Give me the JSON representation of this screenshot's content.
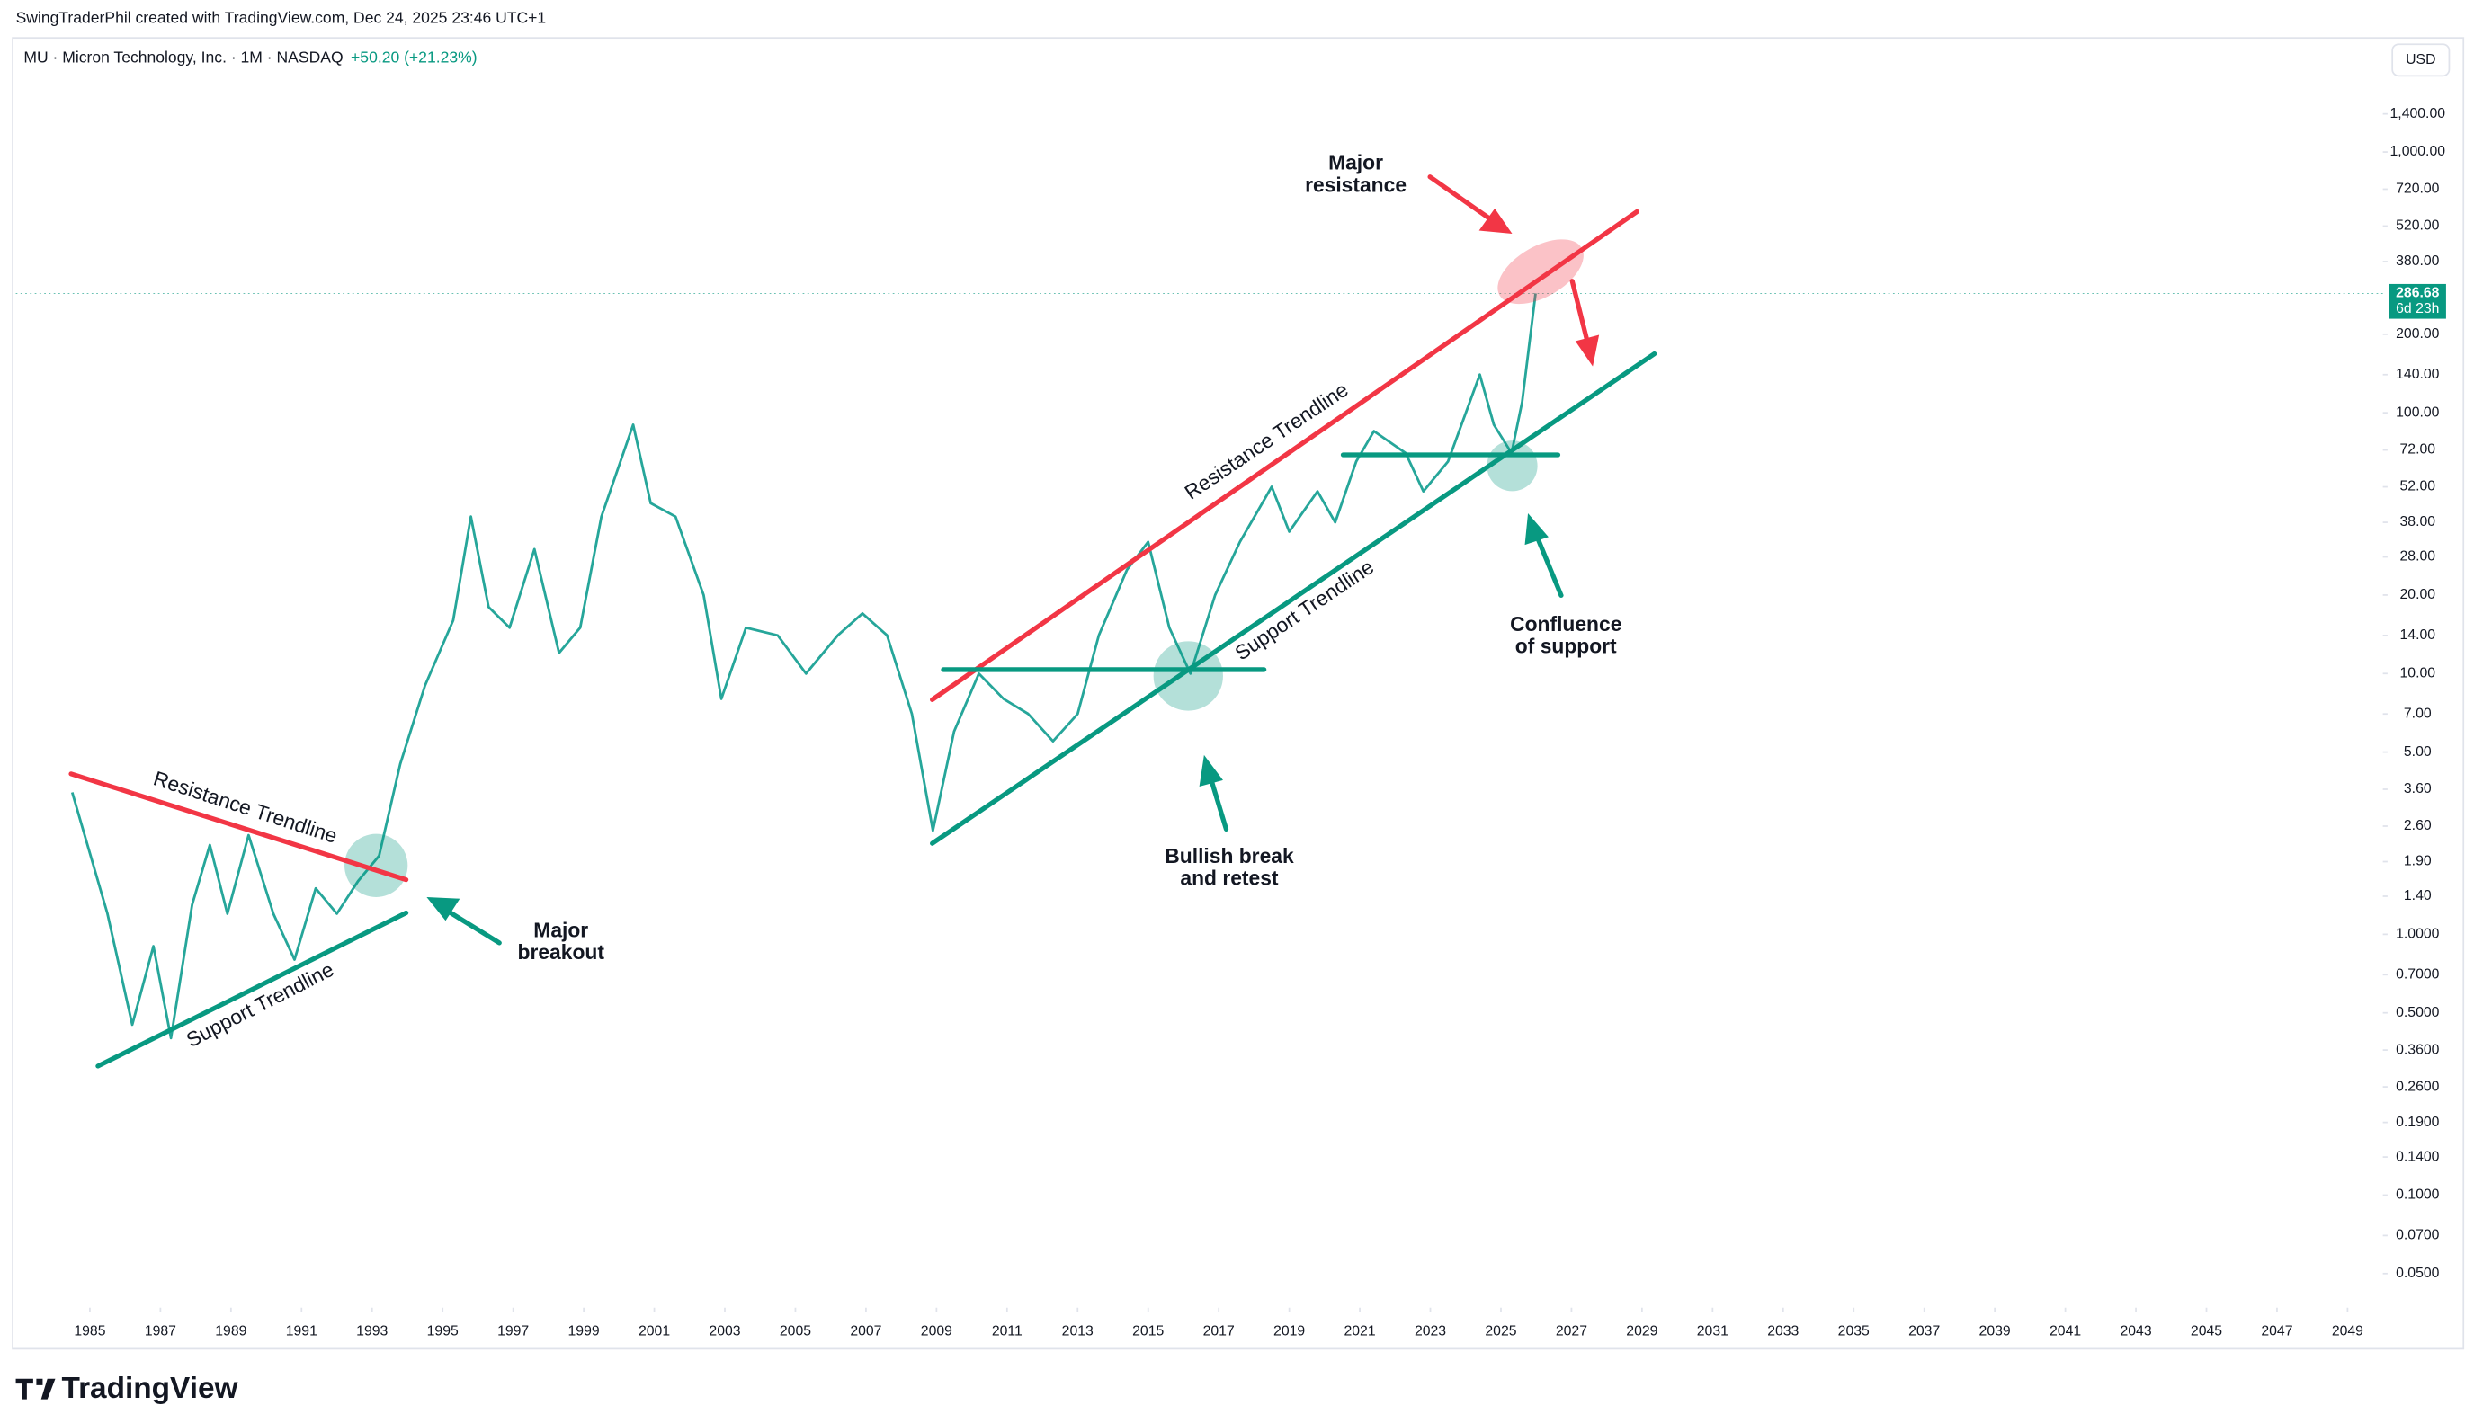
{
  "header": {
    "credit": "SwingTraderPhil created with TradingView.com, Dec 24, 2025 23:46 UTC+1",
    "symbol": "MU · Micron Technology, Inc. · 1M · NASDAQ",
    "change": "+50.20 (+21.23%)",
    "currency": "USD",
    "logo": "TradingView"
  },
  "chart_data": {
    "type": "line",
    "log_scale": true,
    "color": "#26a69a",
    "x": [
      1984.5,
      1985.5,
      1986.2,
      1986.8,
      1987.3,
      1987.9,
      1988.4,
      1988.9,
      1989.5,
      1990.2,
      1990.8,
      1991.4,
      1992.0,
      1992.6,
      1993.2,
      1993.8,
      1994.5,
      1995.3,
      1995.8,
      1996.3,
      1996.9,
      1997.6,
      1998.3,
      1998.9,
      1999.5,
      2000.4,
      2000.9,
      2001.6,
      2002.4,
      2002.9,
      2003.6,
      2004.5,
      2005.3,
      2006.2,
      2006.9,
      2007.6,
      2008.3,
      2008.9,
      2009.5,
      2010.2,
      2010.9,
      2011.6,
      2012.3,
      2013.0,
      2013.6,
      2014.4,
      2015.0,
      2015.6,
      2016.2,
      2016.9,
      2017.6,
      2018.5,
      2019.0,
      2019.8,
      2020.3,
      2020.9,
      2021.4,
      2022.3,
      2022.8,
      2023.5,
      2024.4,
      2024.8,
      2025.3,
      2025.6,
      2025.98
    ],
    "values": [
      3.5,
      1.2,
      0.45,
      0.9,
      0.4,
      1.3,
      2.2,
      1.2,
      2.4,
      1.2,
      0.8,
      1.5,
      1.2,
      1.6,
      2.0,
      4.5,
      9,
      16,
      40,
      18,
      15,
      30,
      12,
      15,
      40,
      90,
      45,
      40,
      20,
      8,
      15,
      14,
      10,
      14,
      17,
      14,
      7,
      2.5,
      6,
      10,
      8,
      7,
      5.5,
      7,
      14,
      25,
      32,
      15,
      10,
      20,
      32,
      52,
      35,
      50,
      38,
      65,
      85,
      70,
      50,
      65,
      140,
      90,
      70,
      110,
      286.68
    ],
    "last_price": 286.68,
    "countdown": "6d 23h",
    "xlim": [
      1982.9,
      2050
    ],
    "ylim": [
      0.037,
      2700
    ],
    "xticks": [
      1985,
      1987,
      1989,
      1991,
      1993,
      1995,
      1997,
      1999,
      2001,
      2003,
      2005,
      2007,
      2009,
      2011,
      2013,
      2015,
      2017,
      2019,
      2021,
      2023,
      2025,
      2027,
      2029,
      2031,
      2033,
      2035,
      2037,
      2039,
      2041,
      2043,
      2045,
      2047,
      2049
    ],
    "yticks": [
      {
        "value": 1400,
        "label": "1,400.00"
      },
      {
        "value": 1000,
        "label": "1,000.00"
      },
      {
        "value": 720,
        "label": "720.00"
      },
      {
        "value": 520,
        "label": "520.00"
      },
      {
        "value": 380,
        "label": "380.00"
      },
      {
        "value": 200,
        "label": "200.00"
      },
      {
        "value": 140,
        "label": "140.00"
      },
      {
        "value": 100,
        "label": "100.00"
      },
      {
        "value": 72,
        "label": "72.00"
      },
      {
        "value": 52,
        "label": "52.00"
      },
      {
        "value": 38,
        "label": "38.00"
      },
      {
        "value": 28,
        "label": "28.00"
      },
      {
        "value": 20,
        "label": "20.00"
      },
      {
        "value": 14,
        "label": "14.00"
      },
      {
        "value": 10,
        "label": "10.00"
      },
      {
        "value": 7,
        "label": "7.00"
      },
      {
        "value": 5,
        "label": "5.00"
      },
      {
        "value": 3.6,
        "label": "3.60"
      },
      {
        "value": 2.6,
        "label": "2.60"
      },
      {
        "value": 1.9,
        "label": "1.90"
      },
      {
        "value": 1.4,
        "label": "1.40"
      },
      {
        "value": 1,
        "label": "1.0000"
      },
      {
        "value": 0.7,
        "label": "0.7000"
      },
      {
        "value": 0.5,
        "label": "0.5000"
      },
      {
        "value": 0.36,
        "label": "0.3600"
      },
      {
        "value": 0.26,
        "label": "0.2600"
      },
      {
        "value": 0.19,
        "label": "0.1900"
      },
      {
        "value": 0.14,
        "label": "0.1400"
      },
      {
        "value": 0.1,
        "label": "0.1000"
      },
      {
        "value": 0.07,
        "label": "0.0700"
      },
      {
        "value": 0.05,
        "label": "0.0500"
      }
    ],
    "annotations": {
      "major_resistance": [
        "Major",
        "resistance"
      ],
      "resistance_left": "Resistance Trendline",
      "support_left": "Support Trendline",
      "resistance_mid": "Resistance Trendline",
      "support_mid": "Support Trendline",
      "major_breakout": [
        "Major",
        "breakout"
      ],
      "bullish": [
        "Bullish break",
        "and retest"
      ],
      "confluence": [
        "Confluence",
        "of support"
      ]
    }
  }
}
